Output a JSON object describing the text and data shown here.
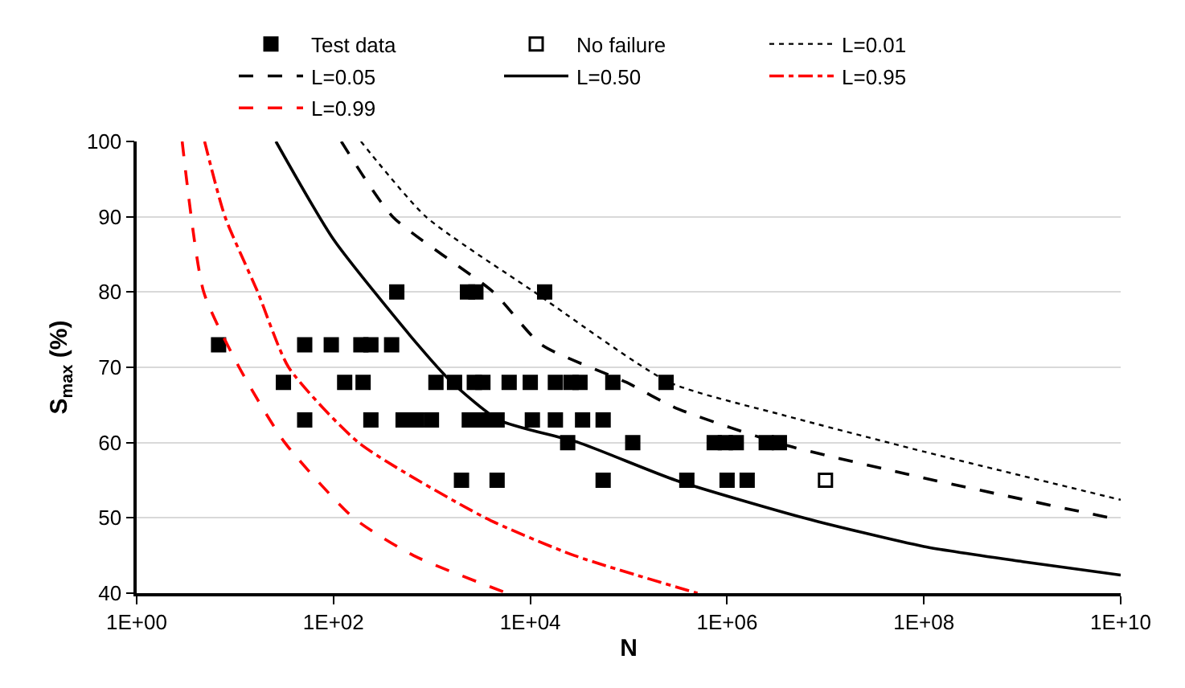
{
  "chart_data": {
    "type": "scatter",
    "xlabel": "N",
    "ylabel": "S$_{max}$ (%)",
    "log": "x",
    "xlim": [
      1,
      10000000000
    ],
    "ylim": [
      40,
      100
    ],
    "xticks": [
      {
        "value": 1,
        "label": "1E+00"
      },
      {
        "value": 100,
        "label": "1E+02"
      },
      {
        "value": 10000,
        "label": "1E+04"
      },
      {
        "value": 1000000,
        "label": "1E+06"
      },
      {
        "value": 100000000,
        "label": "1E+08"
      },
      {
        "value": 10000000000,
        "label": "1E+10"
      }
    ],
    "yticks": [
      40,
      50,
      60,
      70,
      80,
      90,
      100
    ],
    "grid": "y",
    "legend": "top",
    "series": [
      {
        "name": "Test data",
        "marker": "square",
        "color": "#000000",
        "x": [
          440,
          2300,
          2800,
          14000,
          6.8,
          51,
          95,
          190,
          240,
          390,
          31,
          130,
          200,
          1100,
          1700,
          2700,
          3300,
          6100,
          10000,
          18000,
          26000,
          32000,
          69000,
          240000,
          51,
          240,
          510,
          700,
          990,
          2400,
          3300,
          4600,
          10500,
          18000,
          34000,
          55000,
          24000,
          110000,
          740000,
          960000,
          1240000,
          2500000,
          3400000,
          2000,
          4600,
          55000,
          390000,
          1000000,
          1600000
        ],
        "values": [
          80,
          80,
          80,
          80,
          73,
          73,
          73,
          73,
          73,
          73,
          68,
          68,
          68,
          68,
          68,
          68,
          68,
          68,
          68,
          68,
          68,
          68,
          68,
          68,
          63,
          63,
          63,
          63,
          63,
          63,
          63,
          63,
          63,
          63,
          63,
          63,
          60,
          60,
          60,
          60,
          60,
          60,
          60,
          55,
          55,
          55,
          55,
          55,
          55
        ]
      },
      {
        "name": "No failure",
        "marker": "square",
        "color": "#ffffff",
        "x": [
          10000000
        ],
        "values": [
          55
        ]
      },
      {
        "name": "L=0.01",
        "type": "line",
        "line_style": "dotted",
        "color": "#000000",
        "x": [
          190,
          870,
          11000,
          260000,
          3600000,
          100000000,
          10000000000
        ],
        "values": [
          100,
          90,
          80,
          68,
          63.7,
          58.8,
          52.4
        ]
      },
      {
        "name": "L=0.05",
        "type": "line",
        "line_style": "dashed",
        "color": "#000000",
        "x": [
          120,
          400,
          4200,
          13000,
          95000,
          300000,
          3600000,
          100000000,
          10000000000
        ],
        "values": [
          100,
          90,
          80,
          73,
          68,
          64.6,
          59.8,
          55.3,
          49.7
        ]
      },
      {
        "name": "L=0.50",
        "type": "line",
        "line_style": "solid",
        "color": "#000000",
        "x": [
          26,
          100,
          720,
          1600,
          4800,
          31000,
          300000,
          6000000,
          100000000,
          1000000000,
          10000000000
        ],
        "values": [
          100,
          87,
          73,
          68,
          63,
          60,
          55,
          50,
          46.2,
          44.2,
          42.4
        ]
      },
      {
        "name": "L=0.95",
        "type": "line",
        "line_style": "dashdot",
        "color": "#ff0000",
        "x": [
          4.9,
          7.9,
          17,
          35,
          180,
          3500,
          28000,
          500000
        ],
        "values": [
          100,
          90,
          80,
          70,
          60,
          50,
          45,
          40
        ]
      },
      {
        "name": "L=0.99",
        "type": "line",
        "line_style": "dashed",
        "color": "#ff0000",
        "x": [
          2.9,
          4.8,
          11,
          32,
          160,
          650,
          5800
        ],
        "values": [
          100,
          80,
          70,
          60,
          50,
          45,
          40
        ]
      }
    ]
  }
}
